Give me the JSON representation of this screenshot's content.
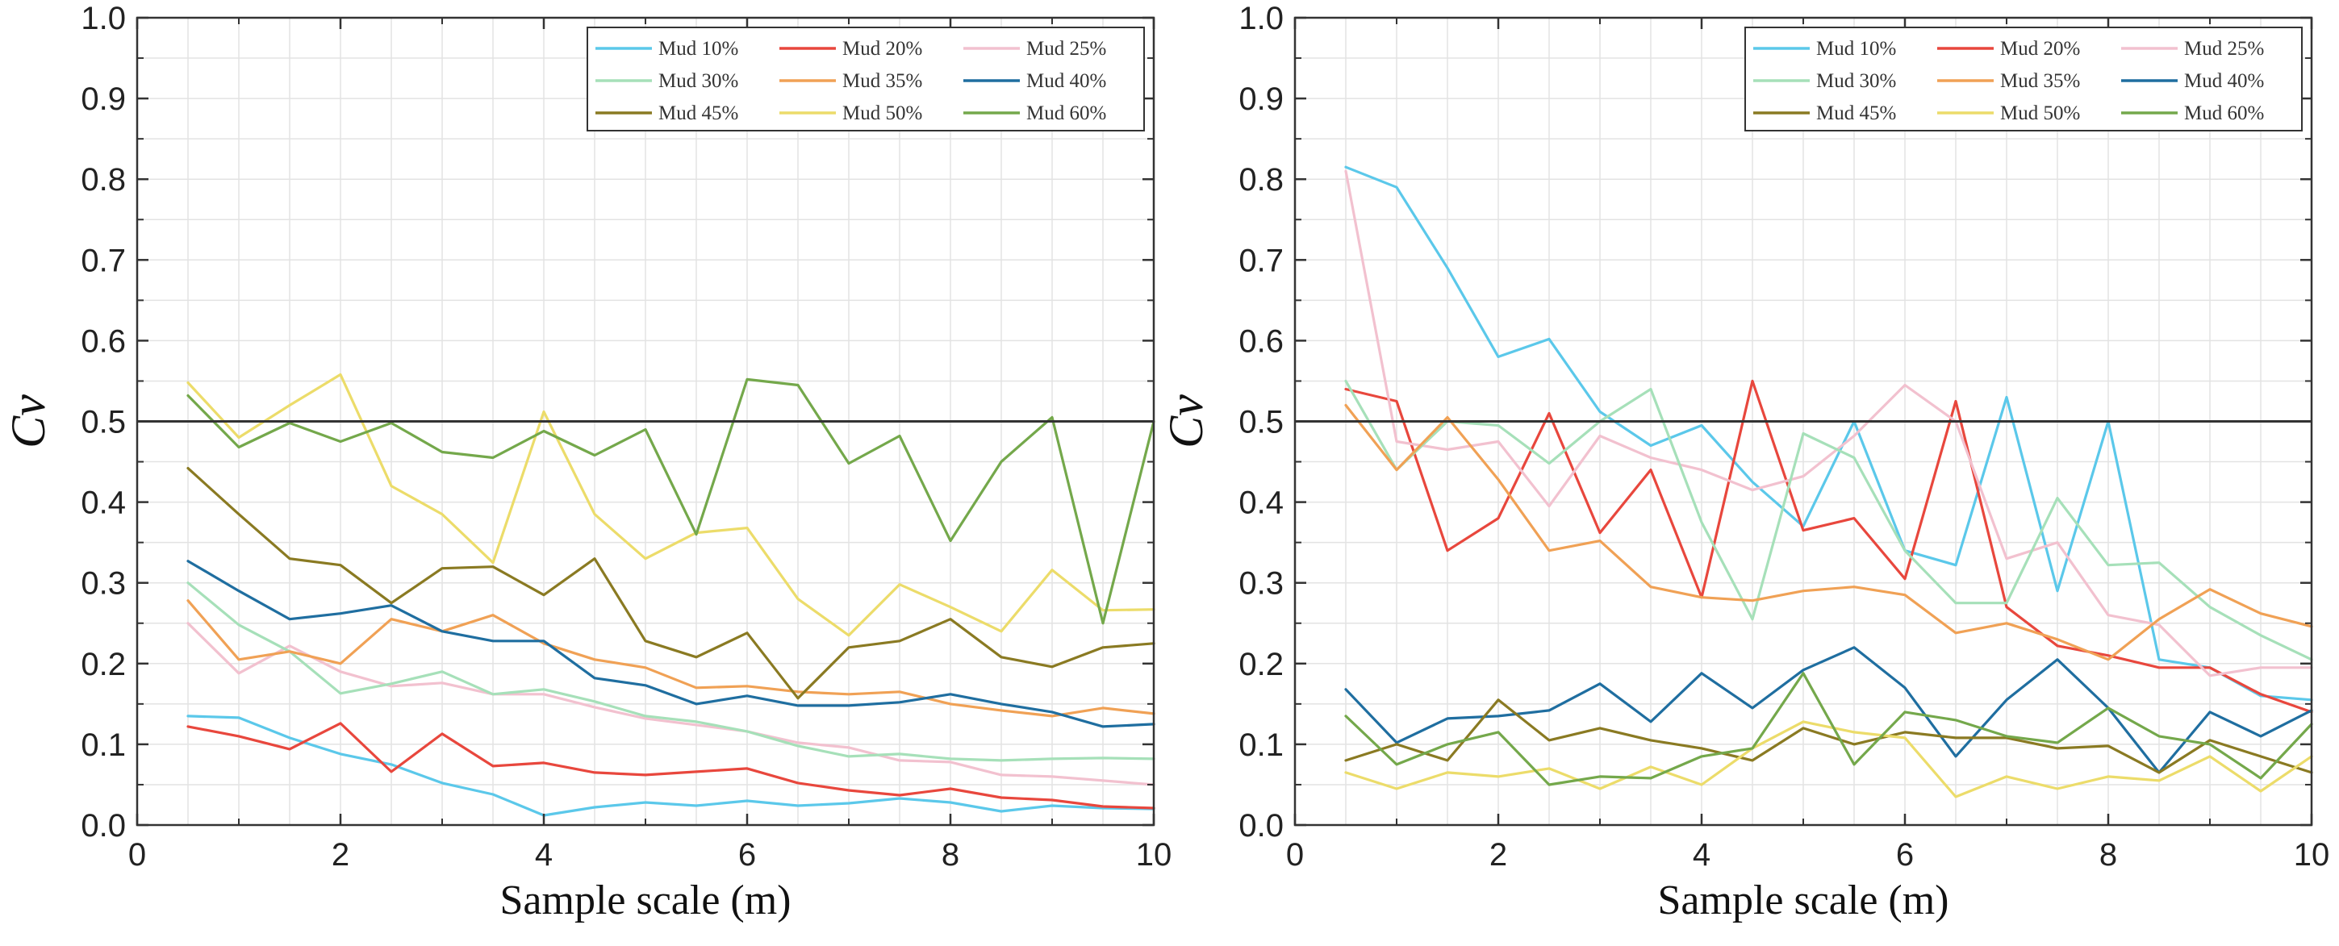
{
  "chart_data": [
    {
      "type": "line",
      "title": "",
      "xlabel": "Sample scale (m)",
      "ylabel": "Cv",
      "xlim": [
        0,
        10
      ],
      "ylim": [
        0,
        1.0
      ],
      "x_ticks": [
        "0",
        "2",
        "4",
        "6",
        "8",
        "10"
      ],
      "y_ticks": [
        "0.0",
        "0.1",
        "0.2",
        "0.3",
        "0.4",
        "0.5",
        "0.6",
        "0.7",
        "0.8",
        "0.9",
        "1.0"
      ],
      "reference_line": 0.5,
      "grid": true,
      "legend_position": "top-right",
      "x": [
        0.5,
        1,
        1.5,
        2,
        2.5,
        3,
        3.5,
        4,
        4.5,
        5,
        5.5,
        6,
        6.5,
        7,
        7.5,
        8,
        8.5,
        9,
        9.5,
        10
      ],
      "series": [
        {
          "name": "Mud 10%",
          "color": "#5bc8ea",
          "values": [
            0.135,
            0.133,
            0.108,
            0.088,
            0.075,
            0.052,
            0.038,
            0.012,
            0.022,
            0.028,
            0.024,
            0.03,
            0.024,
            0.027,
            0.033,
            0.028,
            0.017,
            0.024,
            0.021,
            0.02
          ]
        },
        {
          "name": "Mud 20%",
          "color": "#e8473d",
          "values": [
            0.122,
            0.11,
            0.094,
            0.126,
            0.066,
            0.113,
            0.073,
            0.077,
            0.065,
            0.062,
            0.066,
            0.07,
            0.052,
            0.043,
            0.037,
            0.045,
            0.034,
            0.031,
            0.023,
            0.021
          ]
        },
        {
          "name": "Mud 25%",
          "color": "#f2c1cf",
          "values": [
            0.25,
            0.188,
            0.222,
            0.19,
            0.172,
            0.176,
            0.162,
            0.162,
            0.146,
            0.132,
            0.124,
            0.116,
            0.102,
            0.096,
            0.08,
            0.078,
            0.062,
            0.06,
            0.055,
            0.05
          ]
        },
        {
          "name": "Mud 30%",
          "color": "#a6e0b9",
          "values": [
            0.3,
            0.248,
            0.215,
            0.163,
            0.175,
            0.19,
            0.162,
            0.168,
            0.153,
            0.135,
            0.128,
            0.116,
            0.098,
            0.085,
            0.088,
            0.082,
            0.08,
            0.082,
            0.083,
            0.082
          ]
        },
        {
          "name": "Mud 35%",
          "color": "#f0a155",
          "values": [
            0.278,
            0.205,
            0.215,
            0.2,
            0.255,
            0.24,
            0.26,
            0.225,
            0.205,
            0.195,
            0.17,
            0.172,
            0.165,
            0.162,
            0.165,
            0.15,
            0.142,
            0.135,
            0.145,
            0.138
          ]
        },
        {
          "name": "Mud 40%",
          "color": "#1f6ea0",
          "values": [
            0.327,
            0.29,
            0.255,
            0.262,
            0.272,
            0.24,
            0.228,
            0.228,
            0.182,
            0.173,
            0.15,
            0.16,
            0.148,
            0.148,
            0.152,
            0.162,
            0.15,
            0.14,
            0.122,
            0.125
          ]
        },
        {
          "name": "Mud 45%",
          "color": "#8a7a22",
          "values": [
            0.442,
            0.385,
            0.33,
            0.322,
            0.275,
            0.318,
            0.32,
            0.285,
            0.33,
            0.228,
            0.208,
            0.238,
            0.157,
            0.22,
            0.228,
            0.255,
            0.208,
            0.196,
            0.22,
            0.225
          ]
        },
        {
          "name": "Mud 50%",
          "color": "#ecdc6a",
          "values": [
            0.548,
            0.48,
            0.52,
            0.558,
            0.42,
            0.385,
            0.325,
            0.512,
            0.385,
            0.33,
            0.362,
            0.368,
            0.28,
            0.235,
            0.298,
            0.27,
            0.24,
            0.316,
            0.266,
            0.267
          ]
        },
        {
          "name": "Mud 60%",
          "color": "#74a84b",
          "values": [
            0.532,
            0.468,
            0.498,
            0.475,
            0.498,
            0.462,
            0.455,
            0.488,
            0.458,
            0.49,
            0.36,
            0.552,
            0.545,
            0.448,
            0.482,
            0.352,
            0.45,
            0.505,
            0.25,
            0.5
          ]
        }
      ]
    },
    {
      "type": "line",
      "title": "",
      "xlabel": "Sample scale (m)",
      "ylabel": "Cv",
      "xlim": [
        0,
        10
      ],
      "ylim": [
        0,
        1.0
      ],
      "x_ticks": [
        "0",
        "2",
        "4",
        "6",
        "8",
        "10"
      ],
      "y_ticks": [
        "0.0",
        "0.1",
        "0.2",
        "0.3",
        "0.4",
        "0.5",
        "0.6",
        "0.7",
        "0.8",
        "0.9",
        "1.0"
      ],
      "reference_line": 0.5,
      "grid": true,
      "legend_position": "top-right",
      "x": [
        0.5,
        1,
        1.5,
        2,
        2.5,
        3,
        3.5,
        4,
        4.5,
        5,
        5.5,
        6,
        6.5,
        7,
        7.5,
        8,
        8.5,
        9,
        9.5,
        10
      ],
      "series": [
        {
          "name": "Mud 10%",
          "color": "#5bc8ea",
          "values": [
            0.815,
            0.79,
            0.69,
            0.58,
            0.602,
            0.512,
            0.47,
            0.495,
            0.425,
            0.37,
            0.5,
            0.34,
            0.322,
            0.53,
            0.29,
            0.5,
            0.205,
            0.195,
            0.16,
            0.155
          ]
        },
        {
          "name": "Mud 20%",
          "color": "#e8473d",
          "values": [
            0.54,
            0.525,
            0.34,
            0.38,
            0.51,
            0.362,
            0.44,
            0.282,
            0.55,
            0.365,
            0.38,
            0.305,
            0.525,
            0.27,
            0.222,
            0.21,
            0.195,
            0.195,
            0.162,
            0.14
          ]
        },
        {
          "name": "Mud 25%",
          "color": "#f2c1cf",
          "values": [
            0.81,
            0.475,
            0.465,
            0.475,
            0.395,
            0.482,
            0.455,
            0.44,
            0.415,
            0.432,
            0.482,
            0.545,
            0.5,
            0.33,
            0.35,
            0.26,
            0.248,
            0.185,
            0.195,
            0.195
          ]
        },
        {
          "name": "Mud 30%",
          "color": "#a6e0b9",
          "values": [
            0.55,
            0.44,
            0.5,
            0.495,
            0.448,
            0.5,
            0.54,
            0.375,
            0.255,
            0.485,
            0.455,
            0.34,
            0.275,
            0.275,
            0.405,
            0.322,
            0.325,
            0.27,
            0.235,
            0.205
          ]
        },
        {
          "name": "Mud 35%",
          "color": "#f0a155",
          "values": [
            0.52,
            0.44,
            0.505,
            0.428,
            0.34,
            0.352,
            0.295,
            0.282,
            0.278,
            0.29,
            0.295,
            0.285,
            0.238,
            0.25,
            0.23,
            0.205,
            0.255,
            0.292,
            0.262,
            0.246
          ]
        },
        {
          "name": "Mud 40%",
          "color": "#1f6ea0",
          "values": [
            0.168,
            0.102,
            0.132,
            0.135,
            0.142,
            0.175,
            0.128,
            0.188,
            0.145,
            0.192,
            0.22,
            0.17,
            0.085,
            0.155,
            0.205,
            0.145,
            0.065,
            0.14,
            0.11,
            0.142
          ]
        },
        {
          "name": "Mud 45%",
          "color": "#8a7a22",
          "values": [
            0.08,
            0.1,
            0.08,
            0.155,
            0.105,
            0.12,
            0.105,
            0.095,
            0.08,
            0.12,
            0.1,
            0.115,
            0.108,
            0.108,
            0.095,
            0.098,
            0.065,
            0.105,
            0.085,
            0.065
          ]
        },
        {
          "name": "Mud 50%",
          "color": "#ecdc6a",
          "values": [
            0.065,
            0.045,
            0.065,
            0.06,
            0.07,
            0.045,
            0.072,
            0.05,
            0.095,
            0.128,
            0.115,
            0.108,
            0.035,
            0.06,
            0.045,
            0.06,
            0.055,
            0.085,
            0.042,
            0.085
          ]
        },
        {
          "name": "Mud 60%",
          "color": "#74a84b",
          "values": [
            0.135,
            0.075,
            0.1,
            0.115,
            0.05,
            0.06,
            0.058,
            0.085,
            0.095,
            0.188,
            0.075,
            0.14,
            0.13,
            0.11,
            0.102,
            0.145,
            0.11,
            0.1,
            0.058,
            0.125
          ]
        }
      ]
    }
  ]
}
